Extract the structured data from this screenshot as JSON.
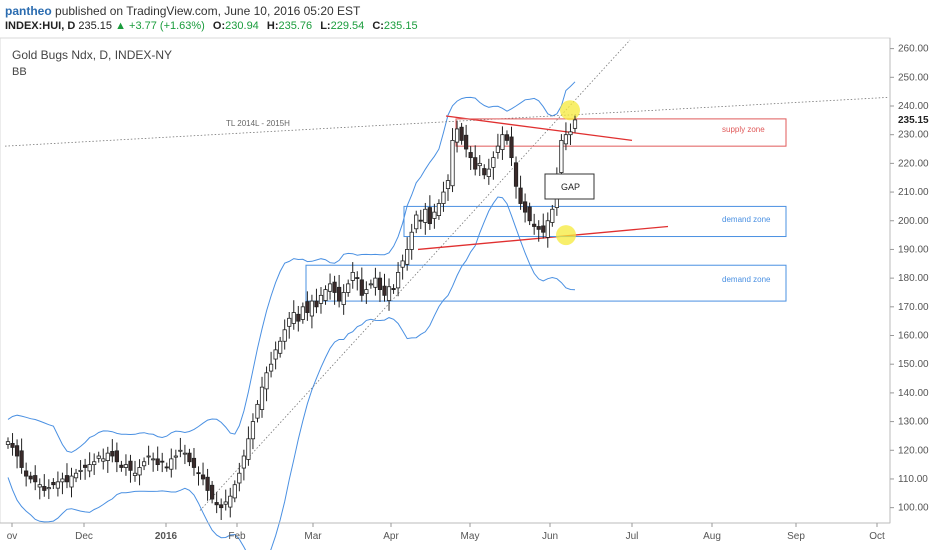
{
  "header": {
    "author": "pantheo",
    "published_text": "published on TradingView.com, June 10, 2016 05:20 EST",
    "symbol": "INDEX:HUI, D",
    "last": "235.15",
    "change_arrow": "▲",
    "change": "+3.77 (+1.63%)",
    "open_label": "O:",
    "open": "230.94",
    "high_label": "H:",
    "high": "235.76",
    "low_label": "L:",
    "low": "229.54",
    "close_label": "C:",
    "close": "235.15"
  },
  "legend": {
    "title": "Gold Bugs Ndx, D, INDEX-NY",
    "indicator": "BB"
  },
  "annotations": {
    "trendline_label": "TL 2014L - 2015H",
    "supply_zone": "supply zone",
    "demand_zone_1": "demand zone",
    "demand_zone_2": "demand zone",
    "gap": "GAP"
  },
  "colors": {
    "up": "#ffffff",
    "down": "#3a2a2a",
    "candle_outline": "#222222",
    "bollinger": "#4a90e2",
    "zone": "#e05a5a",
    "demand": "#4a90e2",
    "trend_red": "#e03030",
    "highlight": "#f5e93a"
  },
  "chart_data": {
    "type": "candlestick",
    "title": "Gold Bugs Ndx, D, INDEX-NY",
    "ylim": [
      95,
      263
    ],
    "y_ticks": [
      "100.00",
      "110.00",
      "120.00",
      "130.00",
      "140.00",
      "150.00",
      "160.00",
      "170.00",
      "180.00",
      "190.00",
      "200.00",
      "210.00",
      "220.00",
      "230.00",
      "240.00",
      "250.00",
      "260.00"
    ],
    "x_ticks": [
      "ov",
      "Dec",
      "2016",
      "Feb",
      "Mar",
      "Apr",
      "May",
      "Jun",
      "Jul",
      "Aug",
      "Sep",
      "Oct"
    ],
    "x_ticks_bold": [
      "2016"
    ],
    "last_price": "235.15",
    "series_close": [
      123,
      121,
      118,
      114,
      111,
      110,
      109,
      108,
      106,
      107,
      108,
      109,
      110,
      109,
      111,
      112,
      113,
      114,
      115,
      116,
      118,
      117,
      119,
      118,
      116,
      114,
      115,
      113,
      112,
      114,
      116,
      118,
      117,
      115,
      116,
      114,
      117,
      118,
      120,
      119,
      116,
      114,
      112,
      110,
      106,
      103,
      101,
      100,
      102,
      104,
      108,
      112,
      118,
      124,
      130,
      136,
      142,
      147,
      150,
      155,
      158,
      162,
      166,
      168,
      165,
      170,
      168,
      172,
      170,
      174,
      176,
      178,
      175,
      172,
      175,
      178,
      182,
      180,
      174,
      176,
      178,
      180,
      176,
      174,
      177,
      176,
      182,
      186,
      190,
      196,
      202,
      200,
      204,
      199,
      203,
      206,
      210,
      214,
      228,
      232,
      228,
      225,
      222,
      218,
      220,
      216,
      218,
      222,
      226,
      230,
      228,
      222,
      212,
      206,
      203,
      200,
      198,
      197,
      196,
      200,
      204,
      215,
      228,
      230,
      231,
      235.15
    ]
  }
}
